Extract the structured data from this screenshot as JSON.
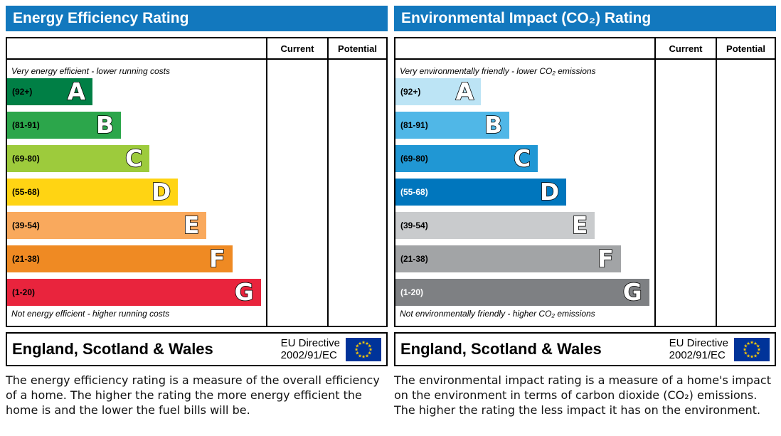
{
  "colors": {
    "header_bg": "#1278be",
    "flag_bg": "#003399",
    "flag_stars": "#ffcc00"
  },
  "chart_data": [
    {
      "type": "bar",
      "title": "Energy Efficiency Rating",
      "categories": [
        "A (92+)",
        "B (81-91)",
        "C (69-80)",
        "D (55-68)",
        "E (39-54)",
        "F (21-38)",
        "G (1-20)"
      ],
      "values": [
        33,
        44,
        55,
        66,
        77,
        87,
        98
      ],
      "value_meaning": "band bar width as % of scale area (standard EPC band template)",
      "columns": [
        "Current",
        "Potential"
      ],
      "current": null,
      "potential": null,
      "annotations": [
        "Very energy efficient - lower running costs",
        "Not energy efficient - higher running costs"
      ]
    },
    {
      "type": "bar",
      "title": "Environmental Impact (CO₂) Rating",
      "categories": [
        "A (92+)",
        "B (81-91)",
        "C (69-80)",
        "D (55-68)",
        "E (39-54)",
        "F (21-38)",
        "G (1-20)"
      ],
      "values": [
        33,
        44,
        55,
        66,
        77,
        87,
        98
      ],
      "value_meaning": "band bar width as % of scale area (standard EPC band template)",
      "columns": [
        "Current",
        "Potential"
      ],
      "current": null,
      "potential": null,
      "annotations": [
        "Very environmentally friendly - lower CO₂ emissions",
        "Not environmentally friendly - higher CO₂ emissions"
      ]
    }
  ],
  "panels": [
    {
      "title": "Energy Efficiency Rating",
      "col_current": "Current",
      "col_potential": "Potential",
      "top_note": "Very energy efficient - lower running costs",
      "bottom_note": "Not energy efficient - higher running costs",
      "bands": [
        {
          "range": "(92+)",
          "letter": "A",
          "color": "#007f45",
          "text_color": "#000000",
          "width_pct": 33
        },
        {
          "range": "(81-91)",
          "letter": "B",
          "color": "#2ca64b",
          "text_color": "#000000",
          "width_pct": 44
        },
        {
          "range": "(69-80)",
          "letter": "C",
          "color": "#9dcb3c",
          "text_color": "#000000",
          "width_pct": 55
        },
        {
          "range": "(55-68)",
          "letter": "D",
          "color": "#ffd413",
          "text_color": "#000000",
          "width_pct": 66
        },
        {
          "range": "(39-54)",
          "letter": "E",
          "color": "#f9a95d",
          "text_color": "#000000",
          "width_pct": 77
        },
        {
          "range": "(21-38)",
          "letter": "F",
          "color": "#ef8a23",
          "text_color": "#000000",
          "width_pct": 87
        },
        {
          "range": "(1-20)",
          "letter": "G",
          "color": "#e9243d",
          "text_color": "#000000",
          "width_pct": 98
        }
      ],
      "footer": {
        "region": "England, Scotland & Wales",
        "directive_line1": "EU Directive",
        "directive_line2": "2002/91/EC"
      },
      "description": "The energy efficiency rating is a measure of the overall efficiency of a home. The higher the rating the more energy efficient the home is and the lower the fuel bills will be."
    },
    {
      "title": "Environmental Impact (CO₂) Rating",
      "col_current": "Current",
      "col_potential": "Potential",
      "top_note": "Very environmentally friendly - lower CO₂ emissions",
      "bottom_note": "Not environmentally friendly - higher CO₂ emissions",
      "bands": [
        {
          "range": "(92+)",
          "letter": "A",
          "color": "#bce4f5",
          "text_color": "#000000",
          "width_pct": 33
        },
        {
          "range": "(81-91)",
          "letter": "B",
          "color": "#50b7e7",
          "text_color": "#000000",
          "width_pct": 44
        },
        {
          "range": "(69-80)",
          "letter": "C",
          "color": "#2097d4",
          "text_color": "#000000",
          "width_pct": 55
        },
        {
          "range": "(55-68)",
          "letter": "D",
          "color": "#0076bd",
          "text_color": "#ffffff",
          "width_pct": 66
        },
        {
          "range": "(39-54)",
          "letter": "E",
          "color": "#c9cbcd",
          "text_color": "#000000",
          "width_pct": 77
        },
        {
          "range": "(21-38)",
          "letter": "F",
          "color": "#a2a4a6",
          "text_color": "#000000",
          "width_pct": 87
        },
        {
          "range": "(1-20)",
          "letter": "G",
          "color": "#7e8083",
          "text_color": "#ffffff",
          "width_pct": 98
        }
      ],
      "footer": {
        "region": "England, Scotland & Wales",
        "directive_line1": "EU Directive",
        "directive_line2": "2002/91/EC"
      },
      "description": "The environmental impact rating is a measure of a home's impact on the environment in terms of carbon dioxide (CO₂) emissions. The higher the rating the less impact it has on the environment."
    }
  ]
}
